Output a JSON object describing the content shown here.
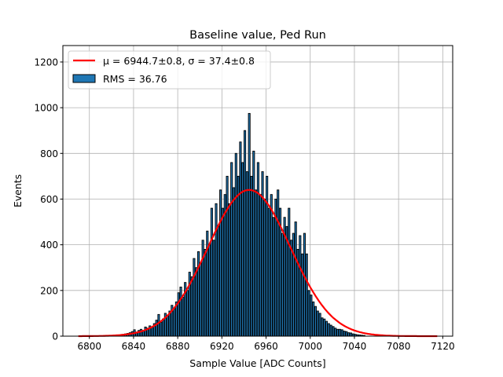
{
  "chart_data": {
    "type": "bar",
    "title": "Baseline value, Ped Run",
    "xlabel": "Sample Value [ADC Counts]",
    "ylabel": "Events",
    "xlim": [
      6776,
      7129
    ],
    "ylim": [
      0,
      1272
    ],
    "xticks": [
      6800,
      6840,
      6880,
      6920,
      6960,
      7000,
      7040,
      7080,
      7120
    ],
    "yticks": [
      0,
      200,
      400,
      600,
      800,
      1000,
      1200
    ],
    "grid": true,
    "legend_position": "top-left",
    "bin_width": 2,
    "bin_start": 6826,
    "values": [
      5,
      6,
      8,
      10,
      12,
      15,
      20,
      28,
      18,
      25,
      30,
      25,
      40,
      35,
      45,
      38,
      55,
      70,
      95,
      60,
      75,
      100,
      90,
      110,
      135,
      120,
      150,
      190,
      215,
      170,
      235,
      200,
      280,
      260,
      340,
      300,
      370,
      320,
      420,
      380,
      460,
      400,
      560,
      420,
      580,
      480,
      640,
      560,
      620,
      700,
      580,
      760,
      650,
      800,
      700,
      850,
      760,
      900,
      720,
      975,
      700,
      810,
      640,
      760,
      620,
      720,
      600,
      700,
      560,
      620,
      520,
      600,
      640,
      560,
      450,
      520,
      480,
      560,
      420,
      450,
      500,
      380,
      440,
      360,
      450,
      360,
      200,
      180,
      150,
      130,
      110,
      100,
      80,
      75,
      65,
      55,
      48,
      42,
      35,
      30,
      30,
      28,
      22,
      20,
      15,
      14,
      10,
      8,
      6,
      5,
      4,
      3
    ],
    "fit": {
      "mu": 6944.7,
      "sigma": 37.4,
      "amplitude": 640,
      "range": [
        6790,
        7115
      ],
      "color": "#ff0000"
    },
    "bar_color": "#1f77b4",
    "legend": [
      {
        "label": "μ = 6944.7±0.8, σ = 37.4±0.8",
        "type": "line"
      },
      {
        "label": "RMS = 36.76",
        "type": "patch"
      }
    ]
  }
}
